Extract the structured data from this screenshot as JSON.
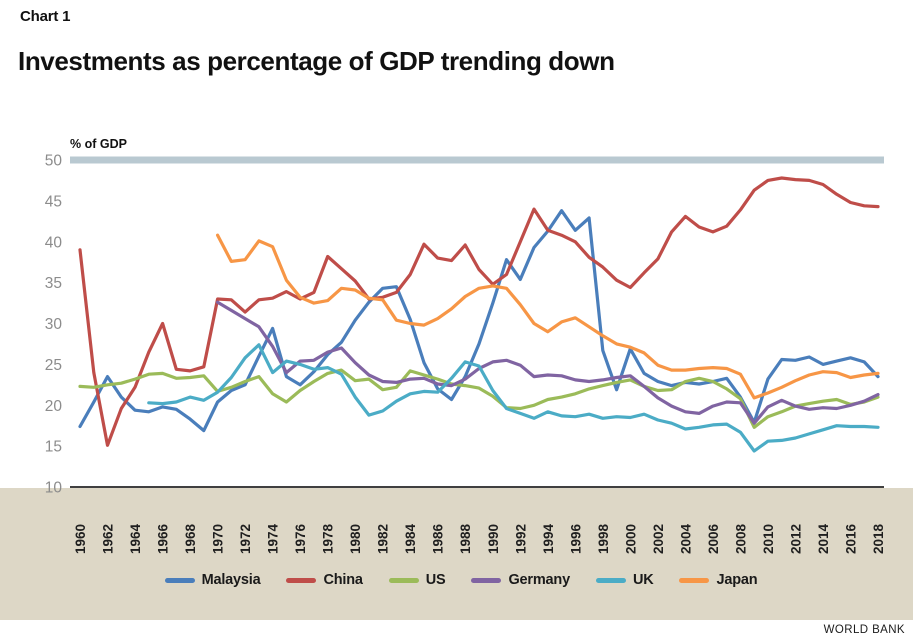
{
  "page": {
    "chart_label": "Chart 1",
    "title": "Investments as percentage of GDP trending down",
    "source_label": "WORLD BANK"
  },
  "chart_data": {
    "type": "line",
    "title": "Investments as percentage of GDP trending down",
    "unit_label": "% of GDP",
    "ylim": [
      10,
      50
    ],
    "yticks": [
      10,
      15,
      20,
      25,
      30,
      35,
      40,
      45,
      50
    ],
    "x_start": 1960,
    "x_end": 2018,
    "xtick_step": 2,
    "grid": false,
    "legend_position": "bottom",
    "band_value": 50,
    "band_color": "#b9c9d1",
    "axis_color": "#000000",
    "ytick_color": "#8c8c8c",
    "xtick_color": "#1f1f1f",
    "series": [
      {
        "name": "Malaysia",
        "color": "#4a7ebb",
        "start_year": 1960,
        "values": [
          17.4,
          20.4,
          23.5,
          21.0,
          19.4,
          19.2,
          19.8,
          19.5,
          18.3,
          16.9,
          20.4,
          21.8,
          22.5,
          26.0,
          29.4,
          23.5,
          22.5,
          24.1,
          26.2,
          27.7,
          30.4,
          32.6,
          34.3,
          34.5,
          30.5,
          25.2,
          22.0,
          20.7,
          23.5,
          27.5,
          32.5,
          37.8,
          35.4,
          39.3,
          41.3,
          43.8,
          41.4,
          42.9,
          26.7,
          21.9,
          26.9,
          23.9,
          22.9,
          22.4,
          22.8,
          22.6,
          22.9,
          23.3,
          21.0,
          17.9,
          23.2,
          25.6,
          25.5,
          25.9,
          25.0,
          25.4,
          25.8,
          25.3,
          23.5
        ]
      },
      {
        "name": "China",
        "color": "#bf4d49",
        "start_year": 1960,
        "values": [
          39.0,
          24.0,
          15.1,
          19.6,
          22.2,
          26.5,
          30.0,
          24.4,
          24.2,
          24.7,
          33.0,
          32.9,
          31.4,
          32.9,
          33.1,
          33.9,
          33.0,
          33.8,
          38.2,
          36.7,
          35.2,
          33.0,
          33.2,
          33.8,
          36.0,
          39.7,
          38.0,
          37.7,
          39.6,
          36.6,
          34.8,
          36.0,
          40.0,
          44.0,
          41.4,
          40.8,
          40.0,
          38.1,
          36.9,
          35.3,
          34.4,
          36.2,
          37.9,
          41.2,
          43.1,
          41.8,
          41.2,
          41.9,
          43.9,
          46.3,
          47.5,
          47.8,
          47.6,
          47.5,
          47.0,
          45.8,
          44.8,
          44.4,
          44.3
        ]
      },
      {
        "name": "US",
        "color": "#9bbb59",
        "start_year": 1960,
        "values": [
          22.3,
          22.2,
          22.5,
          22.7,
          23.2,
          23.8,
          23.9,
          23.3,
          23.4,
          23.6,
          21.7,
          22.2,
          22.9,
          23.5,
          21.4,
          20.4,
          21.8,
          22.9,
          23.9,
          24.3,
          23.0,
          23.2,
          21.9,
          22.2,
          24.2,
          23.7,
          23.2,
          22.6,
          22.4,
          22.1,
          21.1,
          19.7,
          19.6,
          20.0,
          20.7,
          21.0,
          21.4,
          22.0,
          22.4,
          22.8,
          23.1,
          22.3,
          21.8,
          21.9,
          22.9,
          23.3,
          22.9,
          22.0,
          20.8,
          17.3,
          18.6,
          19.2,
          19.9,
          20.2,
          20.5,
          20.7,
          20.1,
          20.4,
          21.0
        ]
      },
      {
        "name": "Germany",
        "color": "#8064a2",
        "start_year": 1970,
        "values": [
          32.6,
          31.6,
          30.6,
          29.6,
          27.2,
          24.0,
          25.4,
          25.5,
          26.5,
          27.0,
          25.2,
          23.7,
          22.9,
          22.8,
          23.2,
          23.3,
          22.6,
          22.4,
          23.2,
          24.5,
          25.3,
          25.5,
          24.9,
          23.5,
          23.7,
          23.6,
          23.1,
          22.9,
          23.1,
          23.4,
          23.6,
          22.3,
          20.9,
          19.9,
          19.2,
          19.0,
          19.9,
          20.4,
          20.3,
          17.8,
          19.8,
          20.6,
          19.9,
          19.5,
          19.7,
          19.6,
          20.0,
          20.5,
          21.3
        ]
      },
      {
        "name": "UK",
        "color": "#4bacc6",
        "start_year": 1965,
        "values": [
          20.3,
          20.2,
          20.4,
          21.0,
          20.6,
          21.6,
          23.4,
          25.8,
          27.4,
          24.0,
          25.4,
          25.0,
          24.4,
          24.6,
          23.8,
          21.0,
          18.8,
          19.3,
          20.5,
          21.4,
          21.7,
          21.6,
          23.3,
          25.3,
          24.8,
          21.8,
          19.6,
          19.0,
          18.4,
          19.2,
          18.7,
          18.6,
          18.9,
          18.4,
          18.6,
          18.5,
          18.9,
          18.2,
          17.8,
          17.1,
          17.3,
          17.6,
          17.7,
          16.7,
          14.4,
          15.6,
          15.7,
          16.0,
          16.5,
          17.0,
          17.5,
          17.4,
          17.4,
          17.3
        ]
      },
      {
        "name": "Japan",
        "color": "#f79646",
        "start_year": 1970,
        "values": [
          40.8,
          37.6,
          37.8,
          40.1,
          39.4,
          35.3,
          33.2,
          32.5,
          32.8,
          34.3,
          34.1,
          33.1,
          32.9,
          30.4,
          30.0,
          29.8,
          30.6,
          31.8,
          33.3,
          34.3,
          34.6,
          34.3,
          32.3,
          30.0,
          29.0,
          30.2,
          30.7,
          29.6,
          28.5,
          27.5,
          27.1,
          26.4,
          24.9,
          24.3,
          24.3,
          24.5,
          24.6,
          24.5,
          23.8,
          20.9,
          21.5,
          22.2,
          23.0,
          23.7,
          24.1,
          24.0,
          23.4,
          23.7,
          23.9
        ]
      }
    ]
  }
}
